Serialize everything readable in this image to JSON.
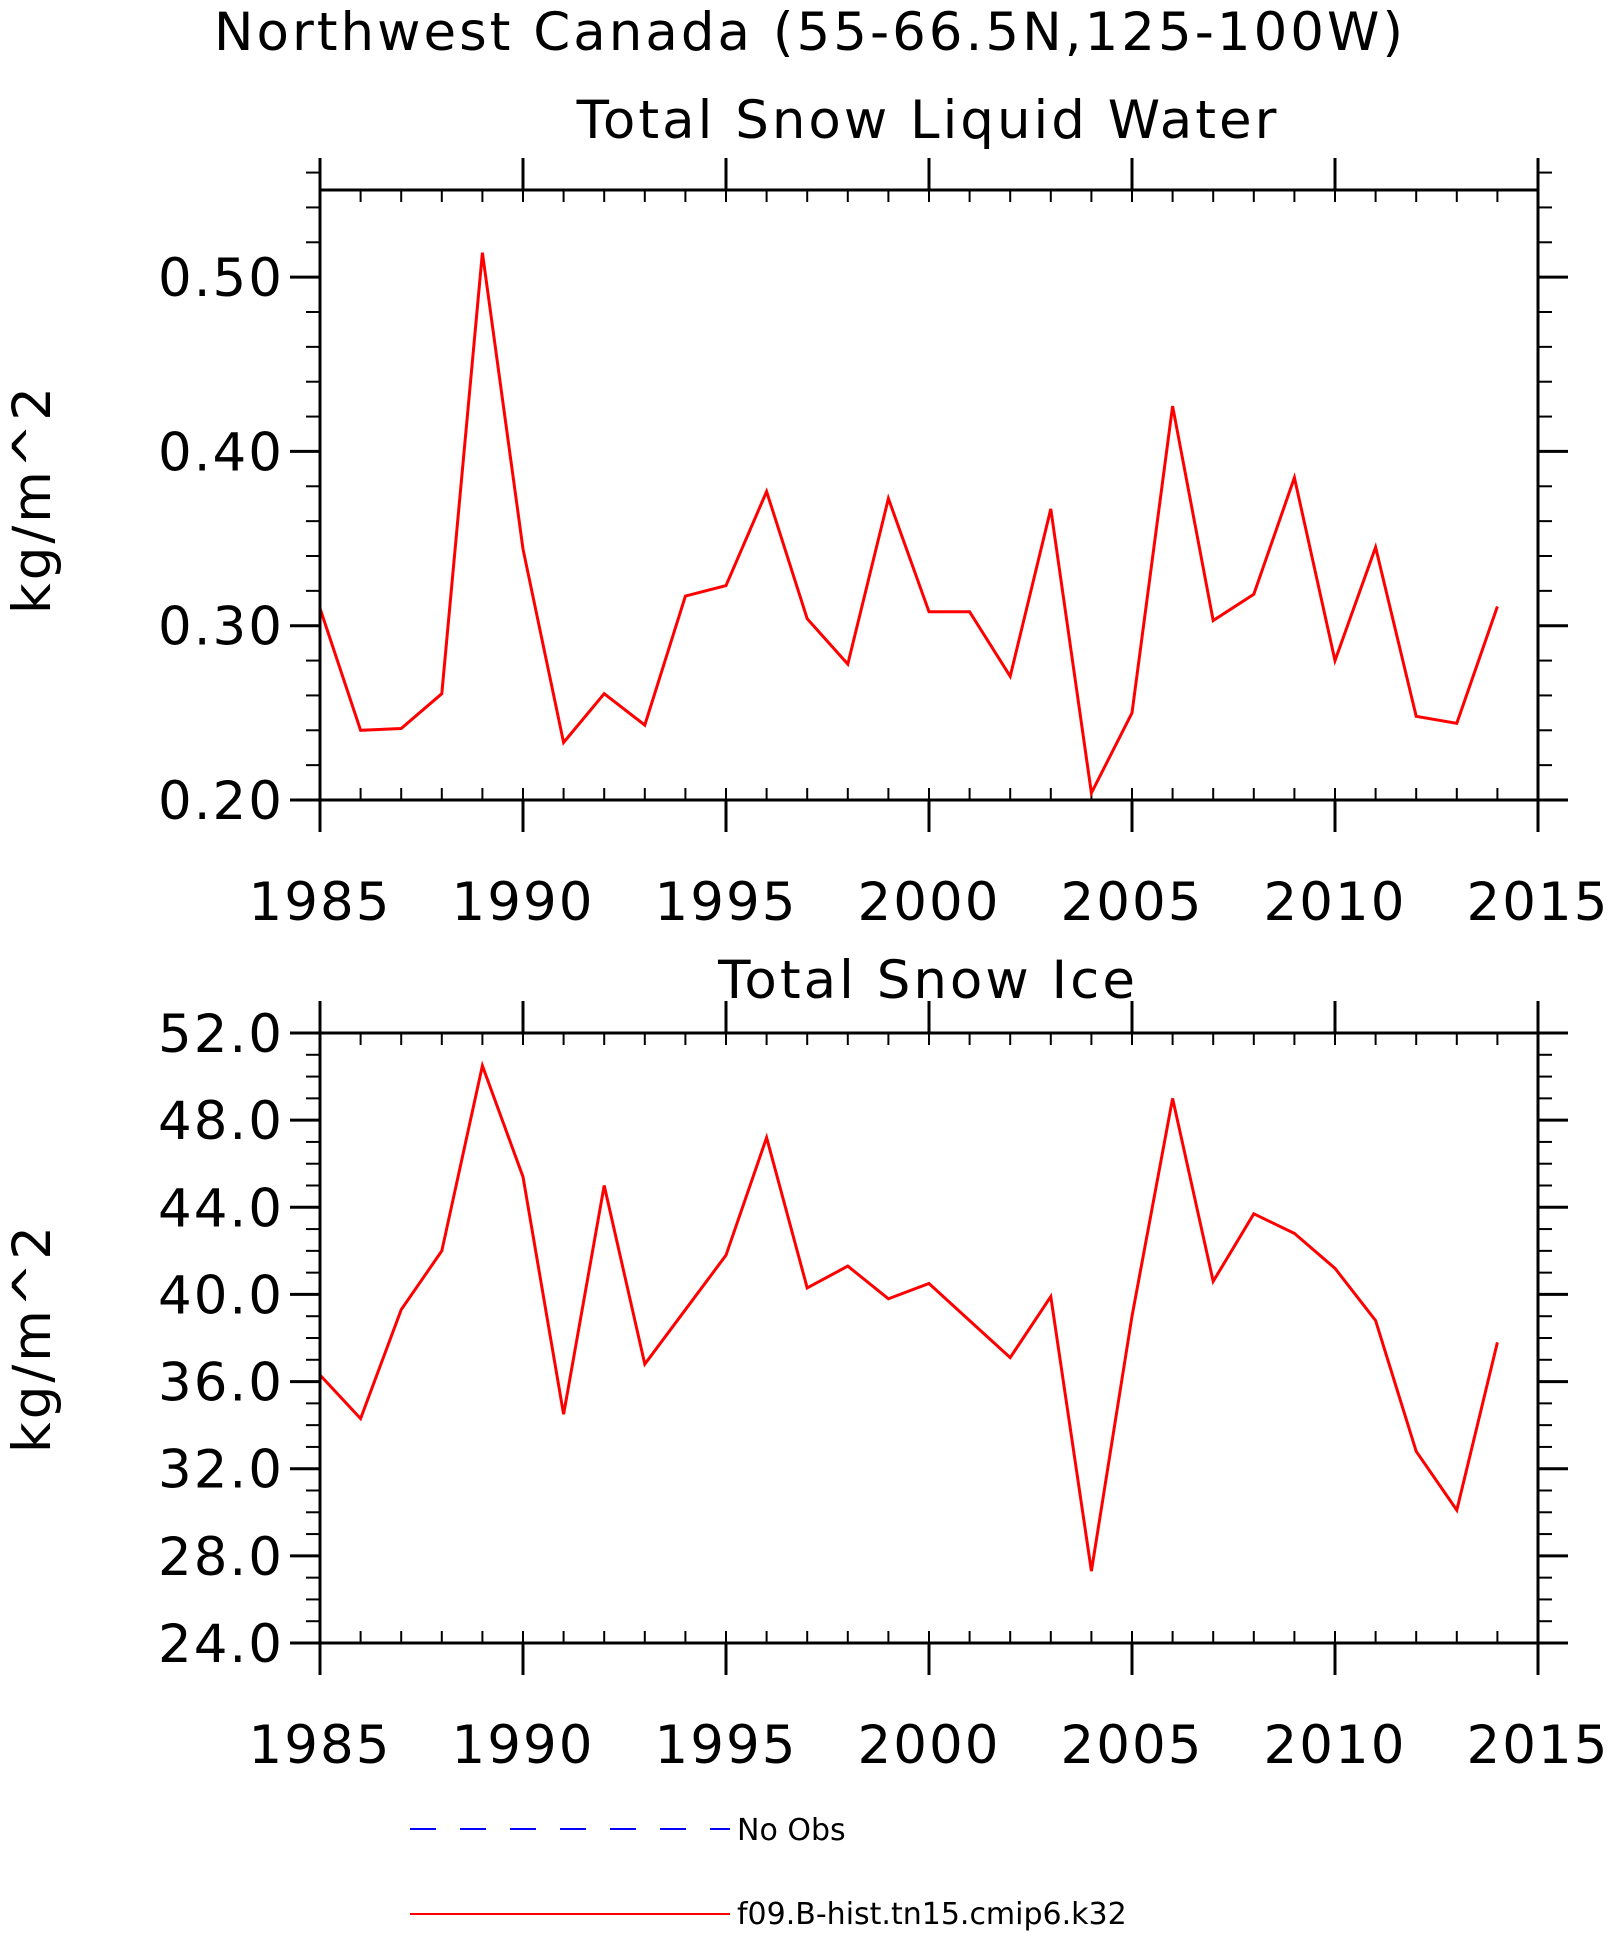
{
  "figure_title": "Northwest Canada (55-66.5N,125-100W)",
  "colors": {
    "model": "#ff0000",
    "obs": "#0000ff",
    "axis": "#000000"
  },
  "legend": {
    "obs_label": "No Obs",
    "model_label": "f09.B-hist.tn15.cmip6.k32"
  },
  "chart_data": [
    {
      "type": "line",
      "title": "Total Snow Liquid Water",
      "ylabel": "kg/m^2",
      "xlim": [
        1985,
        2015
      ],
      "ylim": [
        0.2,
        0.55
      ],
      "xticks": [
        1985,
        1990,
        1995,
        2000,
        2005,
        2010,
        2015
      ],
      "xtick_labels": [
        "1985",
        "1990",
        "1995",
        "2000",
        "2005",
        "2010",
        "2015"
      ],
      "yticks": [
        0.2,
        0.3,
        0.4,
        0.5
      ],
      "ytick_labels": [
        "0.20",
        "0.30",
        "0.40",
        "0.50"
      ],
      "y_minor_step": 0.02,
      "x_minor_step": 1,
      "series": [
        {
          "x": [
            1985,
            1986,
            1987,
            1988,
            1989,
            1990,
            1991,
            1992,
            1993,
            1994,
            1995,
            1996,
            1997,
            1998,
            1999,
            2000,
            2001,
            2002,
            2003,
            2004,
            2005,
            2006,
            2007,
            2008,
            2009,
            2010,
            2011,
            2012,
            2013,
            2014
          ],
          "values": [
            0.31,
            0.24,
            0.241,
            0.261,
            0.514,
            0.344,
            0.233,
            0.261,
            0.243,
            0.317,
            0.323,
            0.377,
            0.304,
            0.278,
            0.373,
            0.308,
            0.308,
            0.271,
            0.367,
            0.204,
            0.25,
            0.426,
            0.303,
            0.318,
            0.385,
            0.28,
            0.345,
            0.248,
            0.244,
            0.311
          ]
        }
      ]
    },
    {
      "type": "line",
      "title": "Total Snow Ice",
      "ylabel": "kg/m^2",
      "xlim": [
        1985,
        2015
      ],
      "ylim": [
        24,
        52
      ],
      "xticks": [
        1985,
        1990,
        1995,
        2000,
        2005,
        2010,
        2015
      ],
      "xtick_labels": [
        "1985",
        "1990",
        "1995",
        "2000",
        "2005",
        "2010",
        "2015"
      ],
      "yticks": [
        24,
        28,
        32,
        36,
        40,
        44,
        48,
        52
      ],
      "ytick_labels": [
        "24.0",
        "28.0",
        "32.0",
        "36.0",
        "40.0",
        "44.0",
        "48.0",
        "52.0"
      ],
      "y_minor_step": 1,
      "x_minor_step": 1,
      "series": [
        {
          "x": [
            1985,
            1986,
            1987,
            1988,
            1989,
            1990,
            1991,
            1992,
            1993,
            1994,
            1995,
            1996,
            1997,
            1998,
            1999,
            2000,
            2001,
            2002,
            2003,
            2004,
            2005,
            2006,
            2007,
            2008,
            2009,
            2010,
            2011,
            2012,
            2013,
            2014
          ],
          "values": [
            36.3,
            34.3,
            39.3,
            42,
            50.5,
            45.4,
            34.5,
            45,
            36.8,
            39.3,
            41.8,
            47.2,
            40.3,
            41.3,
            39.8,
            40.5,
            38.8,
            37.1,
            39.9,
            27.3,
            39,
            49,
            40.6,
            43.7,
            42.8,
            41.2,
            38.8,
            32.8,
            30.1,
            37.8
          ]
        }
      ]
    }
  ]
}
